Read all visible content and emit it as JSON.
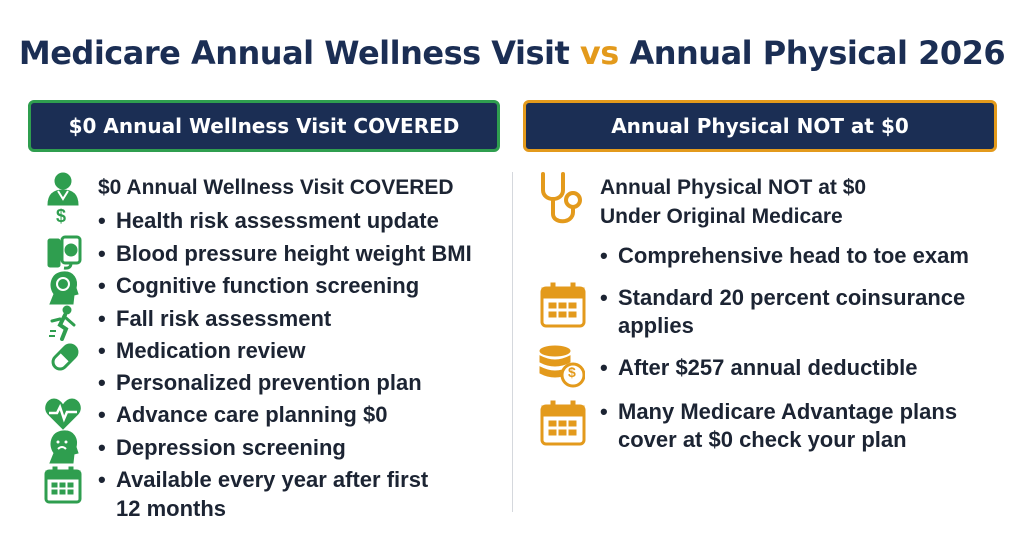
{
  "title": {
    "part1": "Medicare Annual Wellness Visit",
    "vs": "vs",
    "part2": "Annual Physical 2026"
  },
  "left": {
    "header": "$0 Annual Wellness Visit COVERED",
    "heading": "$0 Annual Wellness Visit COVERED",
    "items": [
      "Health risk assessment update",
      "Blood pressure height weight BMI",
      "Cognitive function screening",
      "Fall risk assessment",
      "Medication review",
      "Personalized prevention plan",
      "Advance care planning $0",
      "Depression screening",
      "Available every year after first",
      "12 months"
    ],
    "dollar_icon_text": "$"
  },
  "right": {
    "header": "Annual Physical NOT at $0",
    "heading_line1": "Annual Physical NOT at $0",
    "heading_line2": "Under Original Medicare",
    "items": [
      "Comprehensive head to toe exam",
      "Standard 20 percent coinsurance",
      "applies",
      "After $257 annual deductible",
      "Many Medicare Advantage plans",
      "cover at $0 check your plan"
    ],
    "coin_icon_text": "$"
  },
  "colors": {
    "navy": "#1b2e54",
    "green": "#2f9e4f",
    "orange": "#e39a1c"
  }
}
